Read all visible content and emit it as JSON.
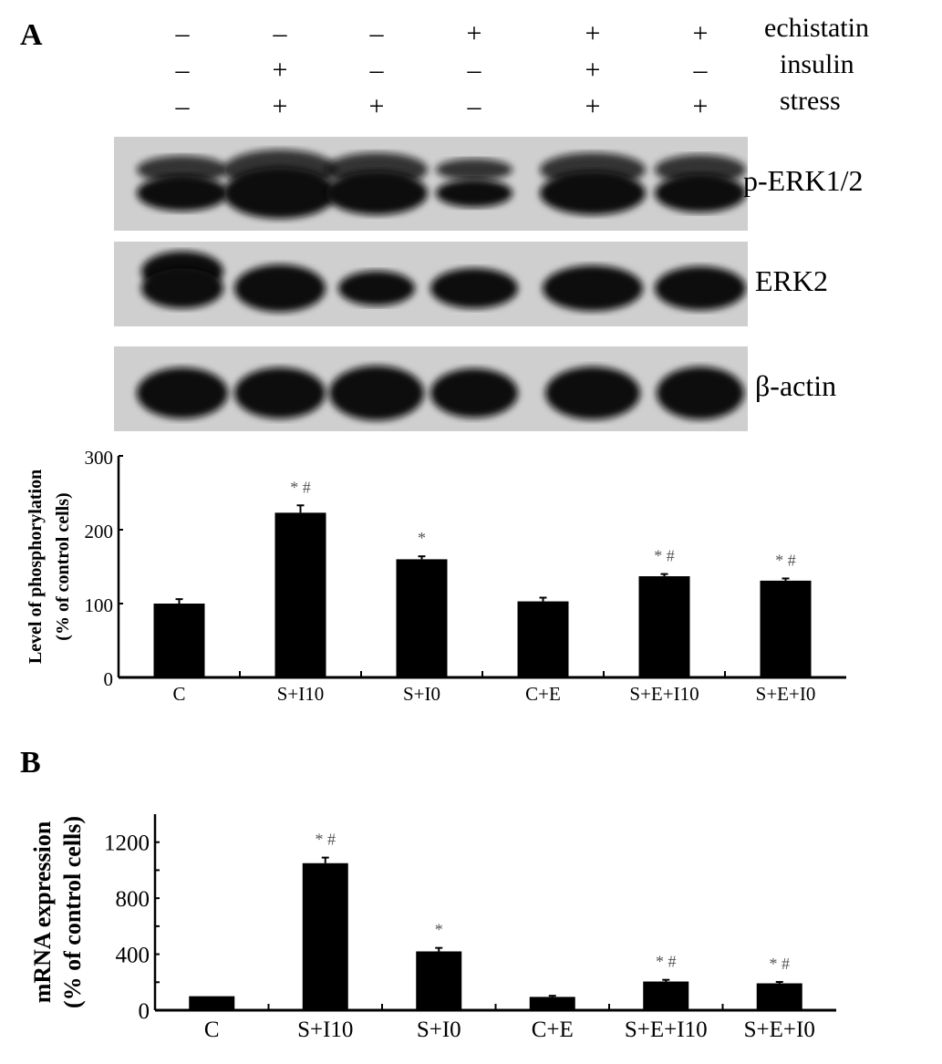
{
  "panels": {
    "a": "A",
    "b": "B"
  },
  "treatment_table": {
    "rows": [
      {
        "label": "echistatin",
        "signs": [
          "–",
          "–",
          "–",
          "+",
          "+",
          "+"
        ]
      },
      {
        "label": "insulin",
        "signs": [
          "–",
          "+",
          "–",
          "–",
          "+",
          "–"
        ]
      },
      {
        "label": "stress",
        "signs": [
          "–",
          "+",
          "+",
          "–",
          "+",
          "+"
        ]
      }
    ]
  },
  "blots": [
    {
      "label": "p-ERK1/2"
    },
    {
      "label": "ERK2"
    },
    {
      "label": "β-actin"
    }
  ],
  "colors": {
    "bar": "#000000",
    "blot_background": "#cfcfcf",
    "band": "#0a0a0a"
  },
  "chart_data": [
    {
      "type": "bar",
      "panel": "A",
      "categories": [
        "C",
        "S+I10",
        "S+I0",
        "C+E",
        "S+E+I10",
        "S+E+I0"
      ],
      "values": [
        100,
        223,
        160,
        103,
        137,
        131
      ],
      "errors": [
        6,
        10,
        4,
        5,
        3,
        3
      ],
      "annotations": [
        "",
        "* #",
        "*",
        "",
        "* #",
        "* #"
      ],
      "ylabel": [
        "Level of phosphorylation",
        "(% of control cells)"
      ],
      "ylim": [
        0,
        300
      ],
      "yticks": [
        0,
        100,
        200,
        300
      ],
      "grid": false
    },
    {
      "type": "bar",
      "panel": "B",
      "categories": [
        "C",
        "S+I10",
        "S+I0",
        "C+E",
        "S+E+I10",
        "S+E+I0"
      ],
      "values": [
        100,
        1050,
        420,
        95,
        205,
        192
      ],
      "errors": [
        0,
        40,
        25,
        8,
        12,
        10
      ],
      "annotations": [
        "",
        "* #",
        "*",
        "",
        "* #",
        "* #"
      ],
      "ylabel": [
        "mRNA expression",
        "(% of control cells)"
      ],
      "ylim": [
        0,
        1400
      ],
      "yticks": [
        0,
        400,
        800,
        1200
      ],
      "grid": false
    }
  ]
}
